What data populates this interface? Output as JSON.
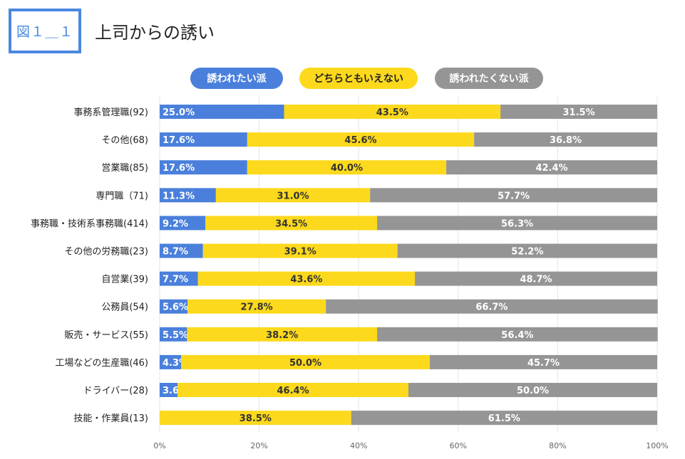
{
  "figure_label": "図１＿１",
  "chart_data": {
    "type": "bar",
    "orientation": "horizontal",
    "stacked": "percent",
    "title": "上司からの誘い",
    "xlabel": "",
    "ylabel": "",
    "xlim": [
      0,
      100
    ],
    "legend_position": "top",
    "grid": true,
    "categories": [
      "事務系管理職(92)",
      "その他(68)",
      "営業職(85)",
      "専門職（71)",
      "事務職・技術系事務職(414)",
      "その他の労務職(23)",
      "自営業(39)",
      "公務員(54)",
      "販売・サービス(55)",
      "工場などの生産職(46)",
      "ドライバー(28)",
      "技能・作業員(13)"
    ],
    "series": [
      {
        "name": "誘われたい派",
        "color": "#4a80dc",
        "label_color": "#ffffff",
        "values": [
          25.0,
          17.6,
          17.6,
          11.3,
          9.2,
          8.7,
          7.7,
          5.6,
          5.5,
          4.3,
          3.6,
          0
        ],
        "labels": [
          "25.0%",
          "17.6%",
          "17.6%",
          "11.3%",
          "9.2%",
          "8.7%",
          "7.7%",
          "5.6%",
          "5.5%",
          "4.3%",
          "3.6%",
          ""
        ]
      },
      {
        "name": "どちらともいえない",
        "color": "#fcd91c",
        "label_color": "#333333",
        "values": [
          43.5,
          45.6,
          40.0,
          31.0,
          34.5,
          39.1,
          43.6,
          27.8,
          38.2,
          50.0,
          46.4,
          38.5
        ],
        "labels": [
          "43.5%",
          "45.6%",
          "40.0%",
          "31.0%",
          "34.5%",
          "39.1%",
          "43.6%",
          "27.8%",
          "38.2%",
          "50.0%",
          "46.4%",
          "38.5%"
        ]
      },
      {
        "name": "誘われたくない派",
        "color": "#959595",
        "label_color": "#ffffff",
        "values": [
          31.5,
          36.8,
          42.4,
          57.7,
          56.3,
          52.2,
          48.7,
          66.7,
          56.4,
          45.7,
          50.0,
          61.5
        ],
        "labels": [
          "31.5%",
          "36.8%",
          "42.4%",
          "57.7%",
          "56.3%",
          "52.2%",
          "48.7%",
          "66.7%",
          "56.4%",
          "45.7%",
          "50.0%",
          "61.5%"
        ]
      }
    ],
    "x_ticks": [
      "0%",
      "20%",
      "40%",
      "60%",
      "80%",
      "100%"
    ]
  }
}
